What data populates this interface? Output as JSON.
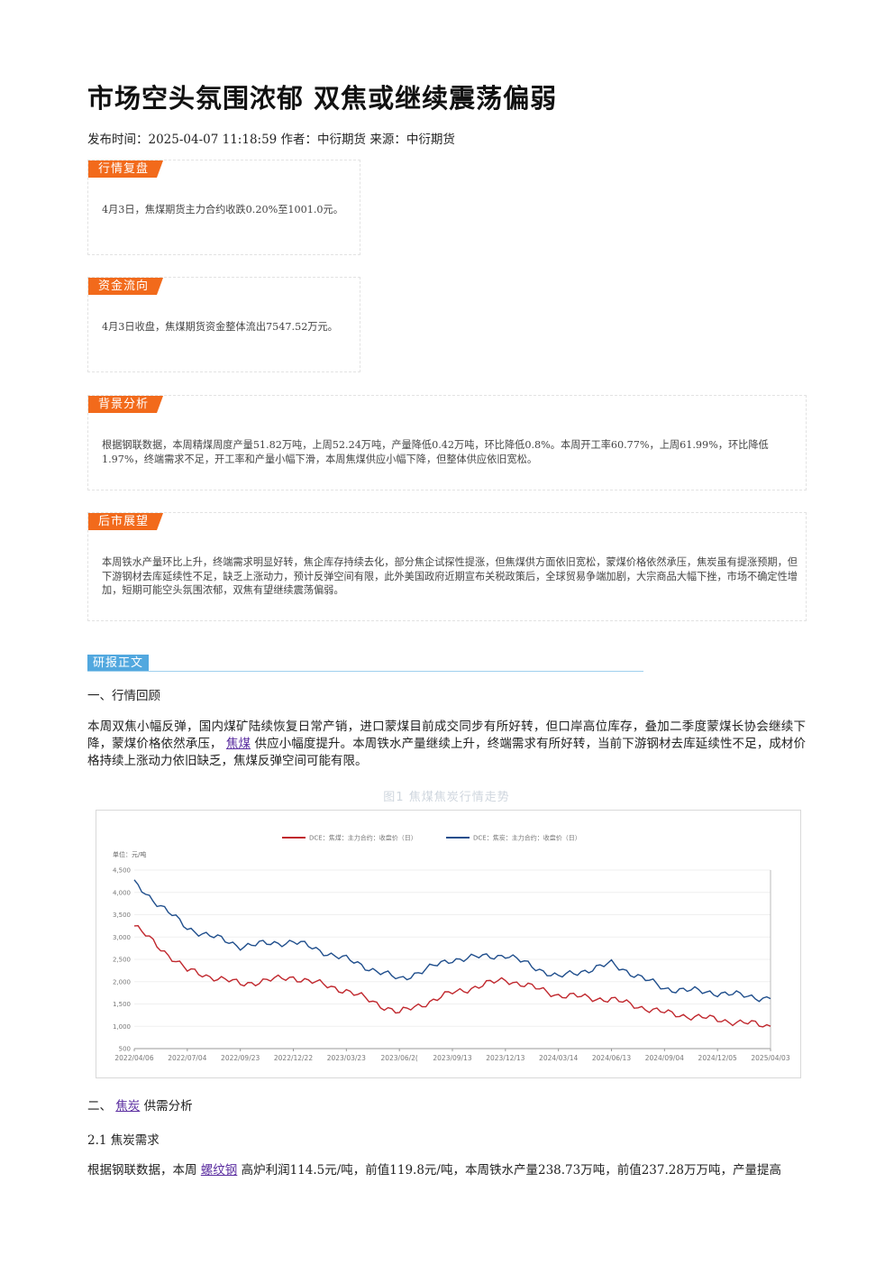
{
  "article": {
    "title": "市场空头氛围浓郁 双焦或继续震荡偏弱",
    "meta": "发布时间：2025-04-07 11:18:59 作者：中衍期货 来源：中衍期货"
  },
  "summary": {
    "market_review": {
      "label": "行情复盘",
      "text": "4月3日，焦煤期货主力合约收跌0.20%至1001.0元。"
    },
    "fund_flow": {
      "label": "资金流向",
      "text": "4月3日收盘，焦煤期货资金整体流出7547.52万元。"
    },
    "background": {
      "label": "背景分析",
      "text": "根据钢联数据，本周精煤周度产量51.82万吨，上周52.24万吨，产量降低0.42万吨，环比降低0.8%。本周开工率60.77%，上周61.99%，环比降低1.97%，终端需求不足，开工率和产量小幅下滑，本周焦煤供应小幅下降，但整体供应依旧宽松。"
    },
    "outlook": {
      "label": "后市展望",
      "text": "本周铁水产量环比上升，终端需求明显好转，焦企库存持续去化，部分焦企试探性提涨，但焦煤供方面依旧宽松，蒙煤价格依然承压，焦炭虽有提涨预期，但下游钢材去库延续性不足，缺乏上涨动力，预计反弹空间有限，此外美国政府近期宣布关税政策后，全球贸易争端加剧，大宗商品大幅下挫，市场不确定性增加，短期可能空头氛围浓郁，双焦有望继续震荡偏弱。"
    }
  },
  "report": {
    "label": "研报正文",
    "section1_heading": "一、行情回顾",
    "section1_para_a": "本周双焦小幅反弹，国内煤矿陆续恢复日常产销，进口蒙煤目前成交同步有所好转，但口岸高位库存，叠加二季度蒙煤长协会继续下降，蒙煤价格依然承压，",
    "section1_link": "焦煤",
    "section1_para_b": "供应小幅度提升。本周铁水产量继续上升，终端需求有所好转，当前下游钢材去库延续性不足，成材价格持续上涨动力依旧缺乏，焦煤反弹空间可能有限。",
    "figure_title": "图1 焦煤焦炭行情走势",
    "section2_heading_prefix": "二、",
    "section2_link": "焦炭",
    "section2_heading_suffix": "供需分析",
    "section21_heading": "2.1 焦炭需求",
    "section21_para_a": "根据钢联数据，本周",
    "section21_link": "螺纹钢",
    "section21_para_b": "高炉利润114.5元/吨，前值119.8元/吨，本周铁水产量238.73万吨，前值237.28万万吨，产量提高"
  },
  "chart_data": {
    "type": "line",
    "ylabel": "单位：元/吨",
    "ylim": [
      500,
      4500
    ],
    "yticks": [
      "500",
      "1,000",
      "1,500",
      "2,000",
      "2,500",
      "3,000",
      "3,500",
      "4,000",
      "4,500"
    ],
    "x": [
      "2022/04/06",
      "2022/07/04",
      "2022/09/23",
      "2022/12/22",
      "2023/03/23",
      "2023/06/20",
      "2023/09/13",
      "2023/12/13",
      "2024/03/14",
      "2024/06/13",
      "2024/09/04",
      "2024/12/05",
      "2025/04/03"
    ],
    "xticks": [
      "2022/04/06",
      "2022/07/04",
      "2022/09/23",
      "2022/12/22",
      "2023/03/23",
      "2023/06/2(",
      "2023/09/13",
      "2023/12/13",
      "2024/03/14",
      "2024/06/13",
      "2024/09/04",
      "2024/12/05",
      "2025/04/03"
    ],
    "series": [
      {
        "name": "DCE：焦煤：主力合约：收盘价（日）",
        "color": "#c0272d",
        "values": [
          3250,
          2250,
          1950,
          2100,
          1800,
          1300,
          1750,
          2050,
          1700,
          1600,
          1300,
          1150,
          1001
        ]
      },
      {
        "name": "DCE：焦炭：主力合约：收盘价（日）",
        "color": "#1f4e8c",
        "values": [
          4200,
          3200,
          2800,
          2900,
          2500,
          2050,
          2500,
          2600,
          2100,
          2400,
          1850,
          1750,
          1620
        ]
      }
    ]
  }
}
